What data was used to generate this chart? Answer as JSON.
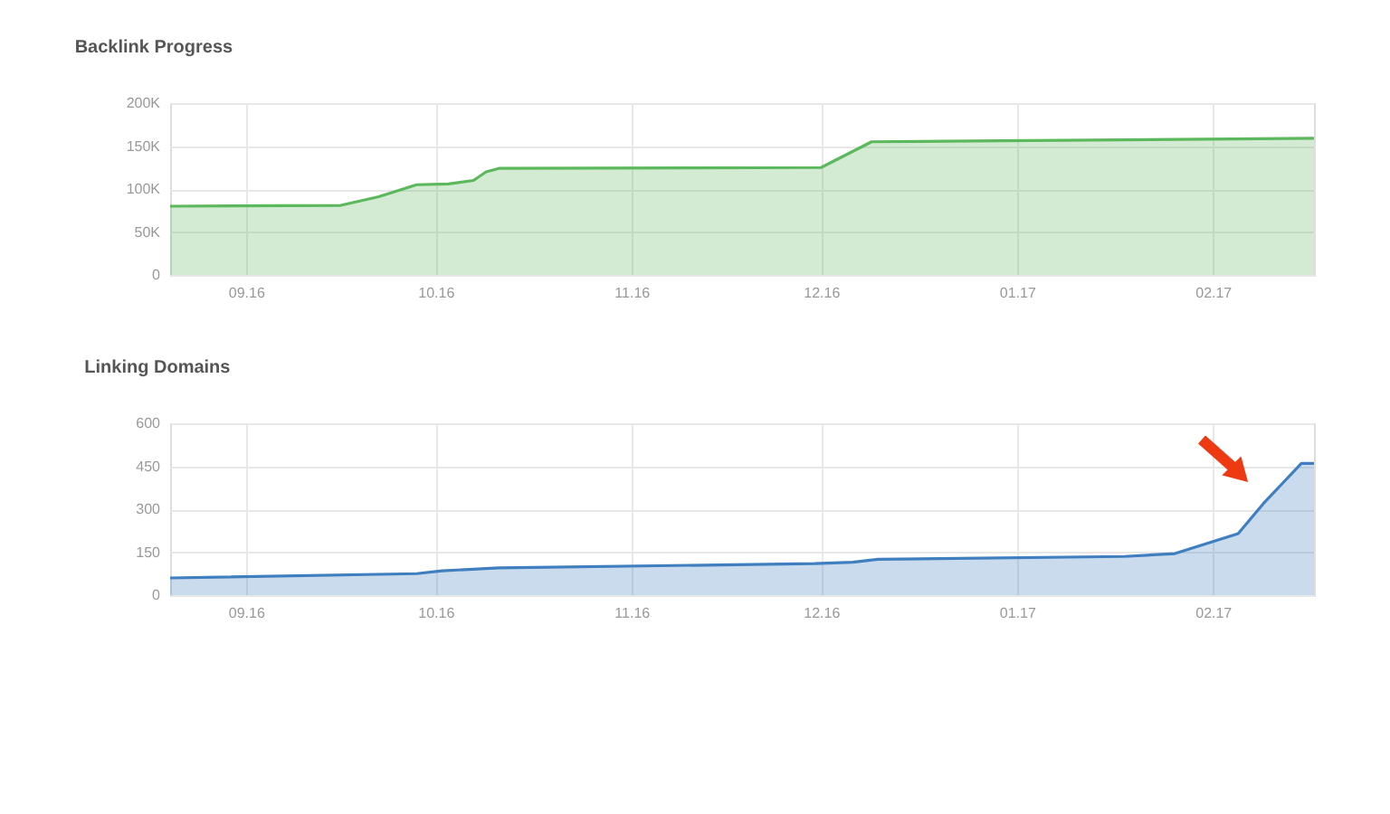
{
  "chart_data": [
    {
      "type": "area",
      "title": "Backlink Progress",
      "legend": false,
      "grid": true,
      "x": [
        "2016-08-20",
        "2016-09-16",
        "2016-09-22",
        "2016-09-28",
        "2016-10-03",
        "2016-10-07",
        "2016-10-09",
        "2016-10-11",
        "2016-12-01",
        "2016-12-09",
        "2016-12-25",
        "2017-02-17"
      ],
      "series": [
        {
          "color": "#5cb85c",
          "values": [
            80000,
            81000,
            91000,
            105000,
            106000,
            110000,
            120000,
            124000,
            125000,
            155000,
            156000,
            159000
          ]
        }
      ],
      "xlim": [
        "2016-08-20",
        "2017-02-17"
      ],
      "xticks": [
        {
          "value": "2016-09-01",
          "label": "09.16"
        },
        {
          "value": "2016-10-01",
          "label": "10.16"
        },
        {
          "value": "2016-11-01",
          "label": "11.16"
        },
        {
          "value": "2016-12-01",
          "label": "12.16"
        },
        {
          "value": "2017-01-01",
          "label": "01.17"
        },
        {
          "value": "2017-02-01",
          "label": "02.17"
        }
      ],
      "ylim": [
        0,
        200000
      ],
      "yticks": [
        0,
        {
          "value": 50000,
          "label": "50K"
        },
        {
          "value": 100000,
          "label": "100K"
        },
        {
          "value": 150000,
          "label": "150K"
        },
        {
          "value": 200000,
          "label": "200K"
        }
      ]
    },
    {
      "type": "area",
      "title": "Linking Domains",
      "legend": false,
      "grid": true,
      "x": [
        "2016-08-20",
        "2016-09-28",
        "2016-10-02",
        "2016-10-11",
        "2016-11-30",
        "2016-12-06",
        "2016-12-10",
        "2017-01-18",
        "2017-01-26",
        "2017-02-05",
        "2017-02-09",
        "2017-02-12",
        "2017-02-15",
        "2017-02-17"
      ],
      "series": [
        {
          "color": "#3f7fbf",
          "values": [
            60,
            75,
            85,
            95,
            110,
            115,
            125,
            135,
            145,
            215,
            320,
            390,
            460,
            460
          ]
        }
      ],
      "xlim": [
        "2016-08-20",
        "2017-02-17"
      ],
      "xticks": [
        {
          "value": "2016-09-01",
          "label": "09.16"
        },
        {
          "value": "2016-10-01",
          "label": "10.16"
        },
        {
          "value": "2016-11-01",
          "label": "11.16"
        },
        {
          "value": "2016-12-01",
          "label": "12.16"
        },
        {
          "value": "2017-01-01",
          "label": "01.17"
        },
        {
          "value": "2017-02-01",
          "label": "02.17"
        }
      ],
      "ylim": [
        0,
        600
      ],
      "yticks": [
        0,
        150,
        300,
        450,
        600
      ]
    }
  ]
}
